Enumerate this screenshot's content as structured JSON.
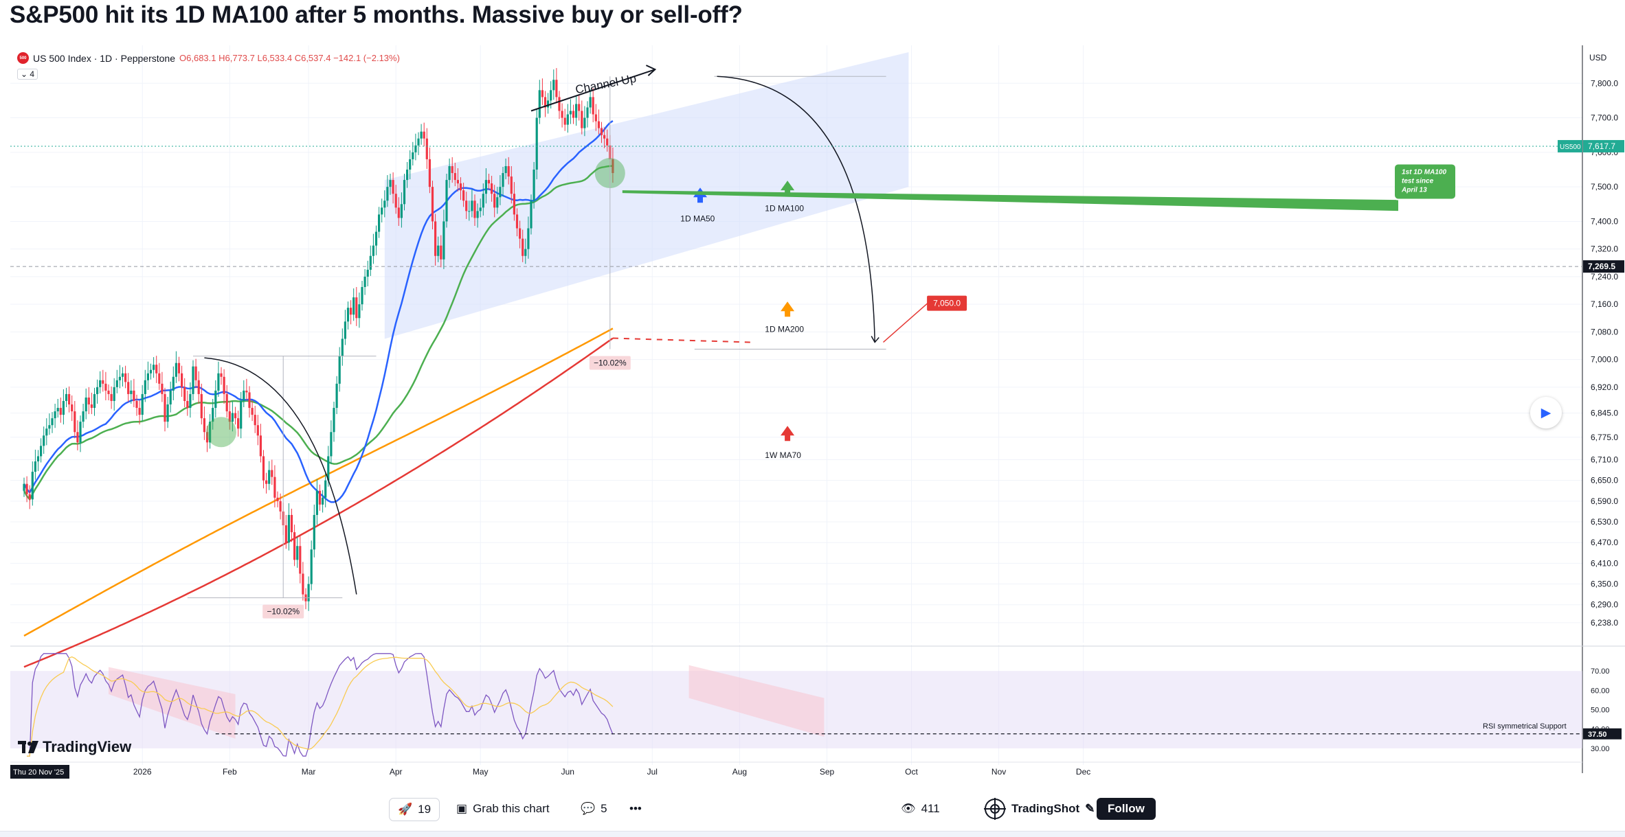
{
  "title": "S&P500 hit its 1D MA100 after 5 months. Massive buy or sell-off?",
  "legend": {
    "logo_text": "500",
    "symbol": "US 500 Index · 1D · Pepperstone",
    "ohlc": "O6,683.1 H6,773.7 L6,533.4 C6,537.4 −142.1 (−2.13%)",
    "indicators_count": "4",
    "collapse_icon": "chevron-down-icon"
  },
  "branding": {
    "name": "TradingView",
    "icon": "tradingview-logo-icon"
  },
  "chart_data": {
    "type": "candlestick",
    "title": "S&P500 hit its 1D MA100 after 5 months. Massive buy or sell-off?",
    "xlabel": "",
    "ylabel": "",
    "currency_label": "USD",
    "ylim": [
      6200,
      7890
    ],
    "y_ticks": [
      6238.0,
      6290.0,
      6350.0,
      6410.0,
      6470.0,
      6530.0,
      6590.0,
      6650.0,
      6710.0,
      6775.0,
      6845.0,
      6920.0,
      7000.0,
      7080.0,
      7160.0,
      7240.0,
      7320.0,
      7400.0,
      7500.0,
      7600.0,
      7700.0,
      7800.0
    ],
    "y_tick_labels": [
      "6,238.0",
      "6,290.0",
      "6,350.0",
      "6,410.0",
      "6,470.0",
      "6,530.0",
      "6,590.0",
      "6,650.0",
      "6,710.0",
      "6,775.0",
      "6,845.0",
      "6,920.0",
      "7,000.0",
      "7,080.0",
      "7,160.0",
      "7,240.0",
      "7,320.0",
      "7,400.0",
      "7,500.0",
      "7,600.0",
      "7,700.0",
      "7,800.0"
    ],
    "x_labels": [
      "2026",
      "Feb",
      "Mar",
      "Apr",
      "May",
      "Jun",
      "Jul",
      "Aug",
      "Sep",
      "Oct",
      "Nov",
      "Dec"
    ],
    "x_label_days": [
      42,
      73,
      101,
      132,
      162,
      193,
      223,
      254,
      285,
      315,
      346,
      376
    ],
    "start_date_label": "Thu 20 Nov '25",
    "price_labels": [
      {
        "symbol": "US500",
        "value": 7617.7,
        "text": "7,617.7",
        "color": "#22ab94"
      },
      {
        "value": 7269.5,
        "text": "7,269.5",
        "color": "#131722"
      }
    ],
    "grid": true,
    "closes": [
      6640,
      6610,
      6595,
      6675,
      6705,
      6720,
      6750,
      6780,
      6800,
      6810,
      6830,
      6850,
      6860,
      6840,
      6880,
      6900,
      6870,
      6850,
      6790,
      6760,
      6820,
      6850,
      6890,
      6870,
      6860,
      6900,
      6920,
      6940,
      6930,
      6910,
      6900,
      6880,
      6920,
      6940,
      6950,
      6960,
      6935,
      6900,
      6910,
      6880,
      6860,
      6840,
      6900,
      6940,
      6960,
      6970,
      6985,
      6960,
      6930,
      6900,
      6820,
      6870,
      6910,
      6950,
      6990,
      6960,
      6920,
      6880,
      6860,
      6900,
      6980,
      6940,
      6900,
      6830,
      6790,
      6760,
      6820,
      6860,
      6910,
      6960,
      6950,
      6900,
      6850,
      6820,
      6845,
      6830,
      6800,
      6880,
      6910,
      6905,
      6860,
      6840,
      6810,
      6780,
      6720,
      6650,
      6640,
      6680,
      6660,
      6600,
      6590,
      6560,
      6520,
      6470,
      6550,
      6500,
      6420,
      6460,
      6380,
      6320,
      6300,
      6350,
      6450,
      6550,
      6620,
      6580,
      6600,
      6650,
      6720,
      6790,
      6860,
      6930,
      7010,
      7060,
      7110,
      7150,
      7130,
      7180,
      7120,
      7160,
      7210,
      7240,
      7260,
      7300,
      7330,
      7370,
      7420,
      7440,
      7460,
      7500,
      7520,
      7480,
      7440,
      7410,
      7450,
      7520,
      7550,
      7580,
      7600,
      7620,
      7640,
      7660,
      7640,
      7580,
      7500,
      7400,
      7300,
      7330,
      7290,
      7400,
      7520,
      7560,
      7540,
      7520,
      7510,
      7490,
      7460,
      7430,
      7430,
      7460,
      7410,
      7430,
      7440,
      7480,
      7520,
      7510,
      7480,
      7440,
      7470,
      7500,
      7540,
      7560,
      7530,
      7480,
      7420,
      7380,
      7350,
      7300,
      7320,
      7380,
      7460,
      7550,
      7700,
      7780,
      7760,
      7730,
      7750,
      7780,
      7810,
      7760,
      7720,
      7700,
      7680,
      7710,
      7720,
      7700,
      7740,
      7720,
      7670,
      7700,
      7730,
      7760,
      7710,
      7690,
      7670,
      7650,
      7640,
      7620,
      7580,
      7540
    ],
    "ma_series": [
      {
        "name": "1D MA50",
        "color": "#2962ff"
      },
      {
        "name": "1D MA100",
        "color": "#4caf50"
      },
      {
        "name": "1D MA200",
        "color": "#ff9800"
      },
      {
        "name": "1W MA70",
        "color": "#e53935"
      }
    ],
    "annotations": [
      {
        "type": "label",
        "text": "Channel Up"
      },
      {
        "type": "label",
        "text": "1D MA50"
      },
      {
        "type": "label",
        "text": "1D MA100"
      },
      {
        "type": "label",
        "text": "1D MA200"
      },
      {
        "type": "label",
        "text": "1W MA70"
      },
      {
        "type": "callout",
        "text": "1st 1D MA100 test since April 13"
      },
      {
        "type": "measure",
        "text": "−10.02%"
      },
      {
        "type": "measure",
        "text": "−10.02%"
      },
      {
        "type": "target",
        "text": "7,050.0",
        "value": 7050.0
      }
    ],
    "rsi": {
      "ylim": [
        25,
        80
      ],
      "y_ticks": [
        30,
        40,
        50,
        60,
        70
      ],
      "y_tick_labels": [
        "30.00",
        "40.00",
        "50.00",
        "60.00",
        "70.00"
      ],
      "support_value": 37.5,
      "support_text": "37.50",
      "support_label": "RSI symmetrical Support"
    }
  },
  "bottom_bar": {
    "boosts": "19",
    "grab_label": "Grab this chart",
    "comments": "5",
    "more_icon": "more-dots-icon",
    "views": "411",
    "author": "TradingShot",
    "follow_label": "Follow"
  }
}
